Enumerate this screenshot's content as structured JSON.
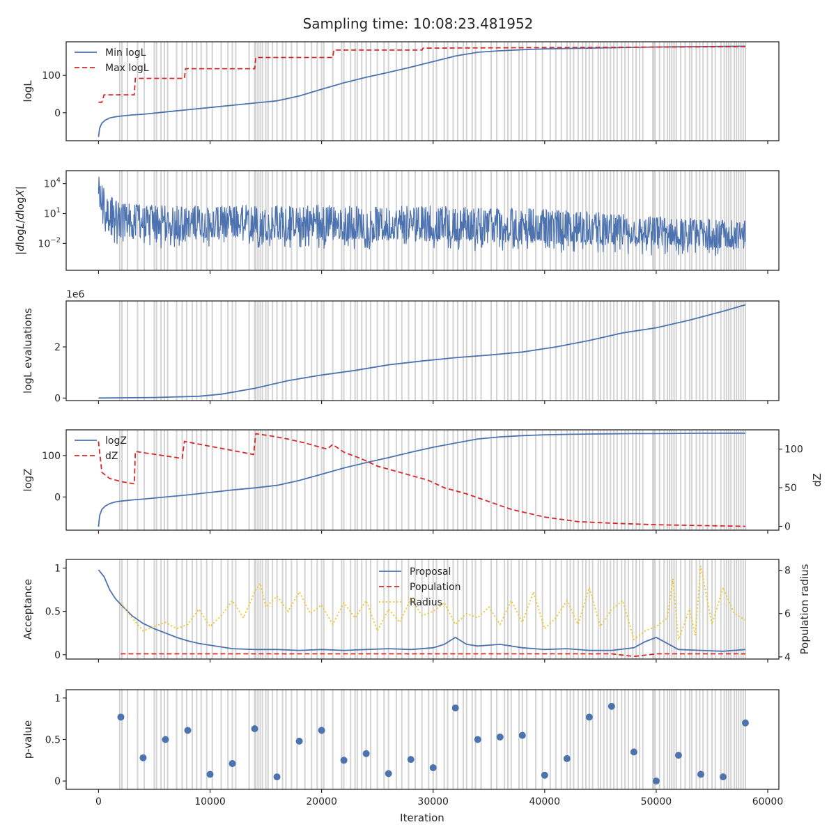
{
  "title": "Sampling time: 10:08:23.481952",
  "xlabel": "Iteration",
  "xlim": [
    -2900,
    61000
  ],
  "xticks": [
    0,
    10000,
    20000,
    30000,
    40000,
    50000,
    60000
  ],
  "shading": {
    "color": "#d3d3d3",
    "positions": [
      1900,
      2100,
      2600,
      3500,
      4100,
      5000,
      5200,
      5600,
      5900,
      6200,
      7000,
      7500,
      7900,
      8400,
      8800,
      9200,
      9700,
      10200,
      11000,
      11600,
      12000,
      12300,
      13500,
      14000,
      14100,
      14300,
      14500,
      14700,
      15000,
      15200,
      15600,
      16000,
      16500,
      16800,
      17300,
      17800,
      18500,
      19100,
      19600,
      20000,
      20200,
      21000,
      21800,
      22000,
      22600,
      23000,
      23200,
      23600,
      24000,
      24400,
      25000,
      25600,
      26000,
      26700,
      27200,
      27800,
      28400,
      29000,
      29600,
      30000,
      30300,
      31000,
      31300,
      31800,
      32200,
      32700,
      33000,
      33500,
      33800,
      34300,
      35200,
      35700,
      36400,
      36700,
      37000,
      37700,
      38000,
      38400,
      39200,
      39800,
      40500,
      41000,
      41500,
      42000,
      42300,
      42600,
      43000,
      43400,
      43700,
      44000,
      44300,
      44800,
      45000,
      45300,
      45600,
      45900,
      46200,
      46500,
      46900,
      47200,
      47500,
      47900,
      48200,
      48500,
      48800,
      49700,
      49800,
      49900,
      50300,
      50700,
      51000,
      51200,
      51400,
      51600,
      51800,
      52200,
      52600,
      53000,
      53200,
      53600,
      53900,
      54200,
      54600,
      55000,
      55300,
      55800,
      56100,
      56300,
      56500,
      56700,
      57000,
      57200,
      57400,
      57600,
      57800,
      58000
    ]
  },
  "chart_data": [
    {
      "type": "line",
      "ylabel": "logL",
      "ylim": [
        -75,
        190
      ],
      "yticks": [
        0,
        100
      ],
      "legend_position": "upper-left",
      "series": [
        {
          "name": "Min logL",
          "color": "#4c72b0",
          "style": "solid",
          "x": [
            0,
            100,
            300,
            600,
            1000,
            1500,
            2000,
            3000,
            4000,
            6000,
            8000,
            10000,
            12000,
            14000,
            16000,
            18000,
            20000,
            22000,
            24000,
            26000,
            28000,
            30000,
            32000,
            34000,
            36000,
            38000,
            40000,
            42000,
            44000,
            46000,
            48000,
            50000,
            52000,
            54000,
            56000,
            58000
          ],
          "y": [
            -65,
            -42,
            -28,
            -20,
            -14,
            -11,
            -9,
            -6,
            -4,
            2,
            8,
            14,
            20,
            26,
            32,
            45,
            63,
            80,
            95,
            108,
            122,
            137,
            152,
            162,
            166,
            169,
            171,
            172,
            173,
            174,
            175,
            176,
            176.5,
            177,
            177.5,
            178
          ]
        },
        {
          "name": "Max logL",
          "color": "#d62728",
          "style": "dashed",
          "x": [
            0,
            300,
            500,
            3200,
            3300,
            7700,
            7800,
            14000,
            14100,
            21000,
            21100,
            29000,
            29100,
            58000
          ],
          "y": [
            28,
            28,
            48,
            48,
            92,
            92,
            118,
            118,
            148,
            148,
            168,
            168,
            173,
            177
          ]
        }
      ]
    },
    {
      "type": "line",
      "ylabel": "|dlogL/dlogX|",
      "yscale": "log",
      "ylim_log10": [
        -4.7,
        5.3
      ],
      "ytick_labels": [
        {
          "base": "10",
          "exp": "4",
          "log10": 4
        },
        {
          "base": "10",
          "exp": "1",
          "log10": 1
        },
        {
          "base": "10",
          "exp": "−2",
          "log10": -2
        }
      ],
      "series": [
        {
          "name": "",
          "color": "#4c72b0",
          "style": "noisy-band",
          "x": [
            0,
            200,
            500,
            1000,
            2000,
            4000,
            8000,
            15000,
            20000,
            30000,
            40000,
            50000,
            58000
          ],
          "upper_log10": [
            5.0,
            4.3,
            3.6,
            2.8,
            2.2,
            1.9,
            1.8,
            1.9,
            1.9,
            1.8,
            1.5,
            0.8,
            0.3
          ],
          "lower_log10": [
            2.0,
            0.8,
            -0.8,
            -1.4,
            -1.5,
            -1.6,
            -1.6,
            -1.6,
            -1.7,
            -1.8,
            -2.0,
            -2.4,
            -2.7
          ]
        }
      ]
    },
    {
      "type": "line",
      "ylabel": "logL evaluations",
      "offset_label": "1e6",
      "ylim": [
        -0.1,
        3.8
      ],
      "yticks": [
        0,
        2
      ],
      "series": [
        {
          "name": "",
          "color": "#4c72b0",
          "style": "solid",
          "x": [
            0,
            5000,
            9000,
            11000,
            14000,
            17000,
            20000,
            23000,
            26000,
            29000,
            32000,
            35000,
            38000,
            41000,
            44000,
            47000,
            50000,
            53000,
            56000,
            58000
          ],
          "y": [
            0.0,
            0.02,
            0.07,
            0.15,
            0.38,
            0.68,
            0.9,
            1.08,
            1.3,
            1.45,
            1.58,
            1.68,
            1.8,
            2.0,
            2.25,
            2.55,
            2.75,
            3.05,
            3.4,
            3.65
          ]
        }
      ]
    },
    {
      "type": "line",
      "ylabel": "logZ",
      "ylabel_right": "dZ",
      "ylim": [
        -80,
        162
      ],
      "yticks": [
        0,
        100
      ],
      "ylim_right": [
        -5,
        125
      ],
      "yticks_right": [
        0,
        50,
        100
      ],
      "legend_position": "upper-left",
      "series": [
        {
          "name": "logZ",
          "color": "#4c72b0",
          "style": "solid",
          "axis": "left",
          "x": [
            0,
            100,
            300,
            600,
            1000,
            1500,
            2000,
            3000,
            4000,
            6000,
            8000,
            10000,
            12000,
            14000,
            16000,
            18000,
            20000,
            22000,
            24000,
            26000,
            28000,
            30000,
            32000,
            34000,
            36000,
            38000,
            40000,
            42000,
            44000,
            46000,
            48000,
            50000,
            52000,
            54000,
            56000,
            58000
          ],
          "y": [
            -72,
            -45,
            -30,
            -22,
            -16,
            -12,
            -10,
            -7,
            -5,
            0,
            5,
            11,
            17,
            22,
            28,
            40,
            55,
            70,
            83,
            95,
            108,
            120,
            130,
            140,
            145,
            148,
            150,
            151,
            152,
            152.5,
            153,
            153,
            153.5,
            154,
            154,
            154
          ]
        },
        {
          "name": "dZ",
          "color": "#d62728",
          "style": "dashed",
          "axis": "right",
          "x": [
            0,
            300,
            1000,
            2000,
            3200,
            3300,
            7500,
            7700,
            13900,
            14100,
            15500,
            17000,
            18500,
            20500,
            21000,
            22000,
            23500,
            25000,
            27000,
            28000,
            29500,
            31000,
            33000,
            35000,
            37000,
            40000,
            43000,
            46000,
            50000,
            54000,
            58000
          ],
          "y": [
            110,
            70,
            62,
            58,
            55,
            97,
            88,
            110,
            93,
            120,
            117,
            113,
            108,
            100,
            106,
            96,
            88,
            78,
            70,
            66,
            60,
            50,
            42,
            32,
            22,
            12,
            6,
            4,
            2,
            1,
            0
          ]
        }
      ]
    },
    {
      "type": "line",
      "ylabel": "Acceptance",
      "ylabel_right": "Population radius",
      "ylim": [
        -0.05,
        1.1
      ],
      "yticks": [
        0.0,
        0.5,
        1.0
      ],
      "ylim_right": [
        3.9,
        8.5
      ],
      "yticks_right": [
        4,
        6,
        8
      ],
      "legend_position": "upper-center",
      "series": [
        {
          "name": "Proposal",
          "color": "#4c72b0",
          "style": "solid",
          "axis": "left",
          "x": [
            0,
            500,
            1000,
            1500,
            2000,
            3000,
            4000,
            5000,
            6000,
            7000,
            8000,
            9000,
            10000,
            11000,
            12000,
            14000,
            16000,
            18000,
            20000,
            22000,
            24000,
            26000,
            28000,
            30000,
            31000,
            32000,
            33000,
            34000,
            36000,
            38000,
            40000,
            42000,
            44000,
            46000,
            48000,
            49000,
            50000,
            52000,
            54000,
            56000,
            58000
          ],
          "y": [
            0.98,
            0.9,
            0.75,
            0.65,
            0.58,
            0.45,
            0.36,
            0.3,
            0.25,
            0.2,
            0.16,
            0.13,
            0.11,
            0.09,
            0.07,
            0.06,
            0.06,
            0.05,
            0.06,
            0.05,
            0.06,
            0.07,
            0.06,
            0.08,
            0.12,
            0.2,
            0.12,
            0.1,
            0.12,
            0.08,
            0.06,
            0.07,
            0.05,
            0.05,
            0.08,
            0.15,
            0.2,
            0.06,
            0.05,
            0.04,
            0.06
          ]
        },
        {
          "name": "Population",
          "color": "#d62728",
          "style": "dashed",
          "axis": "left",
          "x": [
            2000,
            10000,
            20000,
            30000,
            40000,
            46000,
            48000,
            50000,
            58000
          ],
          "y": [
            0.01,
            0.01,
            0.01,
            0.01,
            0.01,
            0.01,
            -0.02,
            0.01,
            0.01
          ]
        },
        {
          "name": "Radius",
          "color": "#f0c419",
          "style": "dotted",
          "axis": "right",
          "x": [
            2000,
            3000,
            4000,
            5000,
            6000,
            7000,
            8000,
            9000,
            10000,
            11000,
            12000,
            13000,
            14000,
            14500,
            15000,
            16000,
            17000,
            18000,
            19000,
            20000,
            21000,
            22000,
            23000,
            24000,
            25000,
            26000,
            27000,
            28000,
            29000,
            30000,
            31000,
            32000,
            33000,
            34000,
            35000,
            36000,
            37000,
            38000,
            39000,
            40000,
            41000,
            42000,
            43000,
            44000,
            45000,
            46000,
            47000,
            48000,
            49000,
            50000,
            51000,
            51500,
            52000,
            53000,
            53500,
            54000,
            55000,
            56000,
            57000,
            58000
          ],
          "y": [
            6.5,
            5.8,
            5.2,
            5.4,
            5.6,
            5.3,
            5.5,
            6.2,
            5.4,
            5.9,
            6.6,
            5.8,
            7.0,
            7.4,
            6.3,
            6.8,
            6.1,
            7.0,
            6.0,
            6.4,
            5.5,
            6.5,
            5.8,
            6.6,
            5.2,
            6.2,
            5.6,
            6.7,
            5.9,
            6.1,
            6.5,
            5.5,
            6.0,
            5.8,
            6.3,
            5.5,
            6.6,
            5.6,
            7.0,
            5.3,
            5.8,
            6.6,
            5.5,
            7.2,
            5.4,
            6.2,
            6.6,
            4.8,
            5.2,
            5.4,
            5.8,
            7.6,
            4.8,
            6.2,
            5.0,
            8.2,
            5.5,
            7.2,
            6.0,
            5.7
          ]
        }
      ]
    },
    {
      "type": "scatter",
      "ylabel": "p-value",
      "ylim": [
        -0.1,
        1.1
      ],
      "yticks": [
        0.0,
        0.5,
        1.0
      ],
      "series": [
        {
          "name": "",
          "color": "#4c72b0",
          "style": "markers",
          "x": [
            2000,
            4000,
            6000,
            8000,
            10000,
            12000,
            14000,
            16000,
            18000,
            20000,
            22000,
            24000,
            26000,
            28000,
            30000,
            32000,
            34000,
            36000,
            38000,
            40000,
            42000,
            44000,
            46000,
            48000,
            50000,
            52000,
            54000,
            56000,
            58000
          ],
          "y": [
            0.77,
            0.28,
            0.5,
            0.61,
            0.08,
            0.21,
            0.63,
            0.05,
            0.48,
            0.61,
            0.25,
            0.33,
            0.09,
            0.26,
            0.16,
            0.88,
            0.5,
            0.53,
            0.55,
            0.07,
            0.27,
            0.77,
            0.9,
            0.35,
            0.0,
            0.31,
            0.08,
            0.05,
            0.7
          ]
        }
      ]
    }
  ]
}
